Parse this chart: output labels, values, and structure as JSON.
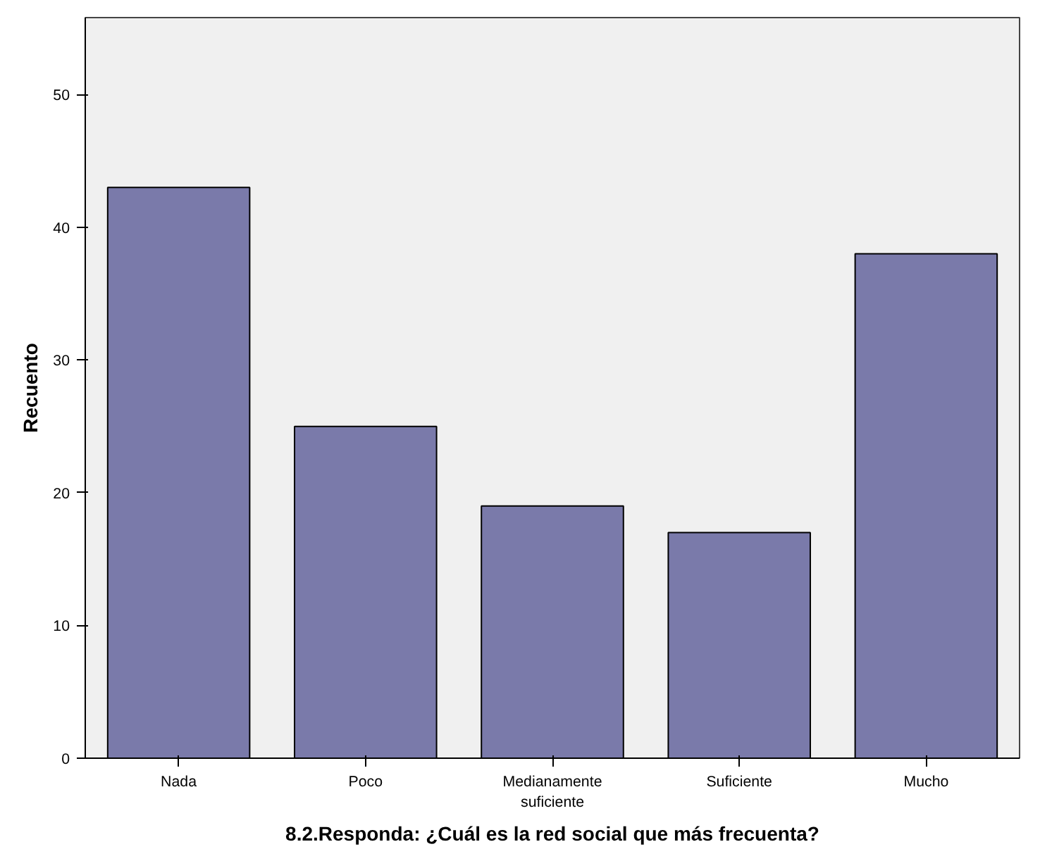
{
  "chart_data": {
    "type": "bar",
    "xlabel": "8.2.Responda: ¿Cuál es la red social que más frecuenta?",
    "ylabel": "Recuento",
    "categories": [
      "Nada",
      "Poco",
      "Medianamente\nsuficiente",
      "Suficiente",
      "Mucho"
    ],
    "values": [
      43,
      25,
      19,
      17,
      38
    ],
    "color": "#7a7aaa",
    "ylim": [
      0,
      55.8
    ],
    "yticks": [
      0,
      10,
      20,
      30,
      40,
      50
    ],
    "grid": false
  }
}
